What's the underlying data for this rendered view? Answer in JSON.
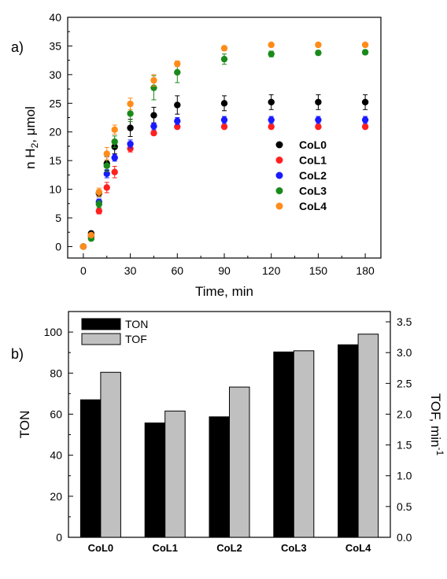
{
  "chart_data": [
    {
      "type": "scatter",
      "panel_label": "a)",
      "xlabel": "Time, min",
      "ylabel_main": "n H",
      "ylabel_sub": "2",
      "ylabel_tail": ", μmol",
      "xlim": [
        -10,
        190
      ],
      "ylim": [
        -2,
        40
      ],
      "x_ticks": [
        0,
        30,
        60,
        90,
        120,
        150,
        180
      ],
      "y_ticks": [
        0,
        5,
        10,
        15,
        20,
        25,
        30,
        35,
        40
      ],
      "legend_position": "right",
      "series": [
        {
          "name": "CoL0",
          "color": "#000000",
          "x": [
            0,
            5,
            10,
            15,
            20,
            30,
            45,
            60,
            90,
            120,
            150,
            180
          ],
          "y": [
            0,
            2.3,
            9.3,
            14.5,
            17.4,
            20.7,
            22.9,
            24.7,
            25.0,
            25.2,
            25.2,
            25.2
          ],
          "err": [
            0,
            0.3,
            0.6,
            1.2,
            1.2,
            1.5,
            1.4,
            1.6,
            1.3,
            1.3,
            1.3,
            1.3
          ]
        },
        {
          "name": "CoL1",
          "color": "#ff2020",
          "x": [
            0,
            5,
            10,
            15,
            20,
            30,
            45,
            60,
            90,
            120,
            150,
            180
          ],
          "y": [
            0,
            1.7,
            6.2,
            10.3,
            13.0,
            17.1,
            19.8,
            20.9,
            20.9,
            20.9,
            20.9,
            20.9
          ],
          "err": [
            0,
            0.2,
            0.5,
            0.9,
            1.0,
            0.6,
            0.4,
            0.3,
            0.3,
            0.3,
            0.3,
            0.3
          ]
        },
        {
          "name": "CoL2",
          "color": "#1a1aff",
          "x": [
            0,
            5,
            10,
            15,
            20,
            30,
            45,
            60,
            90,
            120,
            150,
            180
          ],
          "y": [
            0,
            1.9,
            7.8,
            12.7,
            15.5,
            17.9,
            21.0,
            21.9,
            22.1,
            22.1,
            22.1,
            22.1
          ],
          "err": [
            0,
            0.2,
            0.5,
            0.7,
            0.6,
            0.7,
            0.6,
            0.6,
            0.6,
            0.6,
            0.6,
            0.6
          ]
        },
        {
          "name": "CoL3",
          "color": "#1a8a1a",
          "x": [
            0,
            5,
            10,
            15,
            20,
            30,
            45,
            60,
            90,
            120,
            150,
            180
          ],
          "y": [
            0,
            1.4,
            7.4,
            14.1,
            18.3,
            23.2,
            27.7,
            30.4,
            32.7,
            33.6,
            33.8,
            33.9
          ],
          "err": [
            0,
            0.3,
            0.6,
            1.0,
            1.0,
            1.4,
            2.1,
            1.8,
            0.9,
            0.5,
            0.4,
            0.4
          ]
        },
        {
          "name": "CoL4",
          "color": "#ff8c1a",
          "x": [
            0,
            5,
            10,
            15,
            20,
            30,
            45,
            60,
            90,
            120,
            150,
            180
          ],
          "y": [
            0,
            2.0,
            9.5,
            16.2,
            20.4,
            24.9,
            29.0,
            31.9,
            34.6,
            35.2,
            35.2,
            35.2
          ],
          "err": [
            0,
            0.3,
            0.7,
            1.1,
            0.8,
            1.0,
            1.0,
            0.5,
            0.4,
            0.3,
            0.3,
            0.3
          ]
        }
      ]
    },
    {
      "type": "bar",
      "panel_label": "b)",
      "categories": [
        "CoL0",
        "CoL1",
        "CoL2",
        "CoL3",
        "CoL4"
      ],
      "xlabel": "",
      "ylabel": "TON",
      "ylabel_right_main": "TOF, min",
      "ylabel_right_sup": "-1",
      "ylim": [
        0,
        110
      ],
      "ylim_right": [
        0,
        3.667
      ],
      "y_ticks": [
        0,
        20,
        40,
        60,
        80,
        100
      ],
      "y_ticks_right": [
        "0.0",
        "0.5",
        "1.0",
        "1.5",
        "2.0",
        "2.5",
        "3.0",
        "3.5"
      ],
      "legend_position": "top-left",
      "series": [
        {
          "name": "TON",
          "axis": "left",
          "color": "#000000",
          "values": [
            67,
            55.7,
            58.7,
            90.3,
            93.8
          ]
        },
        {
          "name": "TOF",
          "axis": "right",
          "color": "#c0c0c0",
          "values": [
            2.68,
            2.05,
            2.44,
            3.03,
            3.3
          ]
        }
      ]
    }
  ]
}
